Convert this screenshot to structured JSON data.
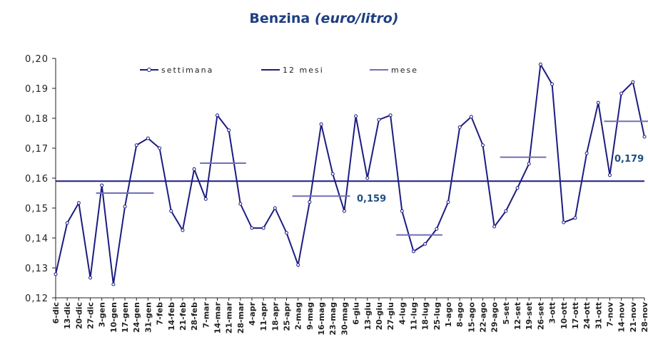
{
  "chart_data": {
    "type": "line",
    "title": "Benzina",
    "title_unit": "(euro/litro)",
    "categories": [
      "6-dic",
      "13-dic",
      "20-dic",
      "27-dic",
      "3-gen",
      "10-gen",
      "17-gen",
      "24-gen",
      "31-gen",
      "7-feb",
      "14-feb",
      "21-feb",
      "28-feb",
      "7-mar",
      "14-mar",
      "21-mar",
      "28-mar",
      "4-apr",
      "11-apr",
      "18-apr",
      "25-apr",
      "2-mag",
      "9-mag",
      "16-mag",
      "23-mag",
      "30-mag",
      "6-giu",
      "13-giu",
      "20-giu",
      "27-giu",
      "4-lug",
      "11-lug",
      "18-lug",
      "25-lug",
      "1-ago",
      "8-ago",
      "15-ago",
      "22-ago",
      "29-ago",
      "5-set",
      "12-set",
      "19-set",
      "26-set",
      "3-ott",
      "10-ott",
      "17-ott",
      "24-ott",
      "31-ott",
      "7-nov",
      "14-nov",
      "21-nov",
      "28-nov"
    ],
    "series": [
      {
        "name": "settimana",
        "color": "#1c1c80",
        "values": [
          0.1279,
          0.145,
          0.1517,
          0.1267,
          0.1576,
          0.1245,
          0.1505,
          0.171,
          0.1733,
          0.17,
          0.149,
          0.1426,
          0.163,
          0.153,
          0.181,
          0.176,
          0.1514,
          0.1433,
          0.1433,
          0.15,
          0.1417,
          0.131,
          0.152,
          0.178,
          0.1614,
          0.149,
          0.1807,
          0.16,
          0.1795,
          0.181,
          0.149,
          0.1355,
          0.138,
          0.143,
          0.152,
          0.177,
          0.1805,
          0.171,
          0.1438,
          0.149,
          0.1567,
          0.1648,
          0.198,
          0.1914,
          0.1452,
          0.1467,
          0.1683,
          0.1852,
          0.161,
          0.1883,
          0.1921,
          0.1738
        ]
      },
      {
        "name": "12 mesi",
        "color": "#1c1c80",
        "values": [
          0.159,
          0.159,
          0.159,
          0.159,
          0.159,
          0.159,
          0.159,
          0.159,
          0.159,
          0.159,
          0.159,
          0.159,
          0.159,
          0.159,
          0.159,
          0.159,
          0.159,
          0.159,
          0.159,
          0.159,
          0.159,
          0.159,
          0.159,
          0.159,
          0.159,
          0.159,
          0.159,
          0.159,
          0.159,
          0.159,
          0.159,
          0.159,
          0.159,
          0.159,
          0.159,
          0.159,
          0.159,
          0.159,
          0.159,
          0.159,
          0.159,
          0.159,
          0.159,
          0.159,
          0.159,
          0.159,
          0.159,
          0.159,
          0.159,
          0.159,
          0.159,
          0.159
        ]
      },
      {
        "name": "mese",
        "color": "#7070b8",
        "values": [
          null,
          null,
          null,
          null,
          0.155,
          0.155,
          0.155,
          0.155,
          0.155,
          null,
          null,
          null,
          null,
          0.165,
          0.165,
          0.165,
          0.165,
          null,
          null,
          null,
          null,
          0.154,
          0.154,
          0.154,
          0.154,
          0.154,
          null,
          null,
          null,
          null,
          0.141,
          0.141,
          0.141,
          0.141,
          null,
          null,
          null,
          null,
          null,
          0.167,
          0.167,
          0.167,
          0.167,
          null,
          null,
          null,
          null,
          null,
          0.179,
          0.179,
          0.179,
          0.179
        ]
      }
    ],
    "annotations": [
      "0,159",
      "0,179"
    ],
    "ylim": [
      0.12,
      0.2
    ],
    "yticks": [
      {
        "value": 0.12,
        "label": "0,12"
      },
      {
        "value": 0.13,
        "label": "0,13"
      },
      {
        "value": 0.14,
        "label": "0,14"
      },
      {
        "value": 0.15,
        "label": "0,15"
      },
      {
        "value": 0.16,
        "label": "0,16"
      },
      {
        "value": 0.17,
        "label": "0,17"
      },
      {
        "value": 0.18,
        "label": "0,18"
      },
      {
        "value": 0.19,
        "label": "0,19"
      },
      {
        "value": 0.2,
        "label": "0,20"
      }
    ]
  }
}
